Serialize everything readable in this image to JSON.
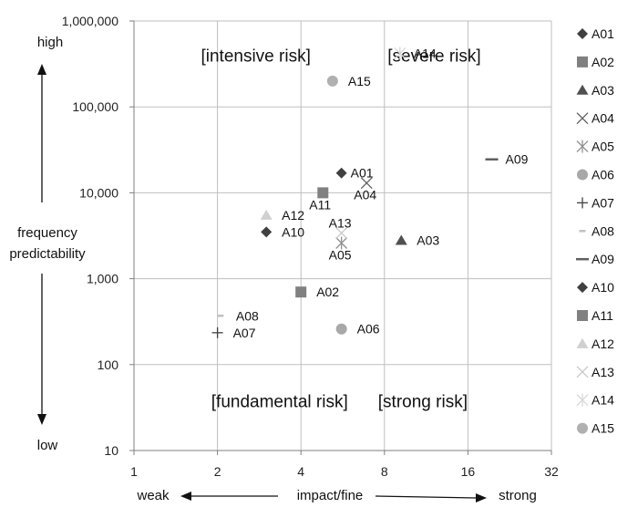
{
  "chart_data": {
    "type": "scatter",
    "x_axis": {
      "scale": "log2",
      "range": [
        1,
        32
      ],
      "ticks": [
        1,
        2,
        4,
        8,
        16,
        32
      ],
      "tick_labels": [
        "1",
        "2",
        "4",
        "8",
        "16",
        "32"
      ],
      "title": "impact/fine",
      "left_label": "weak",
      "right_label": "strong"
    },
    "y_axis": {
      "scale": "log10",
      "range": [
        10,
        1000000
      ],
      "ticks": [
        10,
        100,
        1000,
        10000,
        100000,
        1000000
      ],
      "tick_labels": [
        "10",
        "100",
        "1,000",
        "10,000",
        "100,000",
        "1,000,000"
      ],
      "title_line1": "frequency",
      "title_line2": "predictability",
      "top_label": "high",
      "bottom_label": "low"
    },
    "grid": true,
    "legend_position": "right",
    "quadrants": [
      {
        "label": "[intensive risk]",
        "x": 2.75,
        "y": 400000
      },
      {
        "label": "[severe risk]",
        "x": 12.1,
        "y": 400000
      },
      {
        "label": "[fundamental risk]",
        "x": 3.35,
        "y": 38
      },
      {
        "label": "[strong risk]",
        "x": 11.0,
        "y": 38
      }
    ],
    "series": [
      {
        "name": "A01",
        "marker": "diamond",
        "color": "#404040",
        "x": 5.6,
        "y": 17000
      },
      {
        "name": "A02",
        "marker": "square",
        "color": "#808080",
        "x": 4.0,
        "y": 700
      },
      {
        "name": "A03",
        "marker": "triangle",
        "color": "#505050",
        "x": 9.2,
        "y": 2800
      },
      {
        "name": "A04",
        "marker": "x",
        "color": "#606060",
        "x": 6.9,
        "y": 13000
      },
      {
        "name": "A05",
        "marker": "star",
        "color": "#909090",
        "x": 5.6,
        "y": 2600
      },
      {
        "name": "A06",
        "marker": "circle",
        "color": "#a8a8a8",
        "x": 5.6,
        "y": 260
      },
      {
        "name": "A07",
        "marker": "plus",
        "color": "#404040",
        "x": 2.0,
        "y": 235
      },
      {
        "name": "A08",
        "marker": "short-dash",
        "color": "#c0c0c0",
        "x": 2.05,
        "y": 370
      },
      {
        "name": "A09",
        "marker": "long-dash",
        "color": "#606060",
        "x": 19.5,
        "y": 24500
      },
      {
        "name": "A10",
        "marker": "diamond",
        "color": "#404040",
        "x": 3.0,
        "y": 3500
      },
      {
        "name": "A11",
        "marker": "square",
        "color": "#808080",
        "x": 4.8,
        "y": 10000
      },
      {
        "name": "A12",
        "marker": "triangle",
        "color": "#d0d0d0",
        "x": 3.0,
        "y": 5500
      },
      {
        "name": "A13",
        "marker": "x",
        "color": "#c8c8c8",
        "x": 5.6,
        "y": 3400
      },
      {
        "name": "A14",
        "marker": "star",
        "color": "#d8d8d8",
        "x": 9.1,
        "y": 420000
      },
      {
        "name": "A15",
        "marker": "circle",
        "color": "#b0b0b0",
        "x": 5.2,
        "y": 200000
      }
    ]
  }
}
